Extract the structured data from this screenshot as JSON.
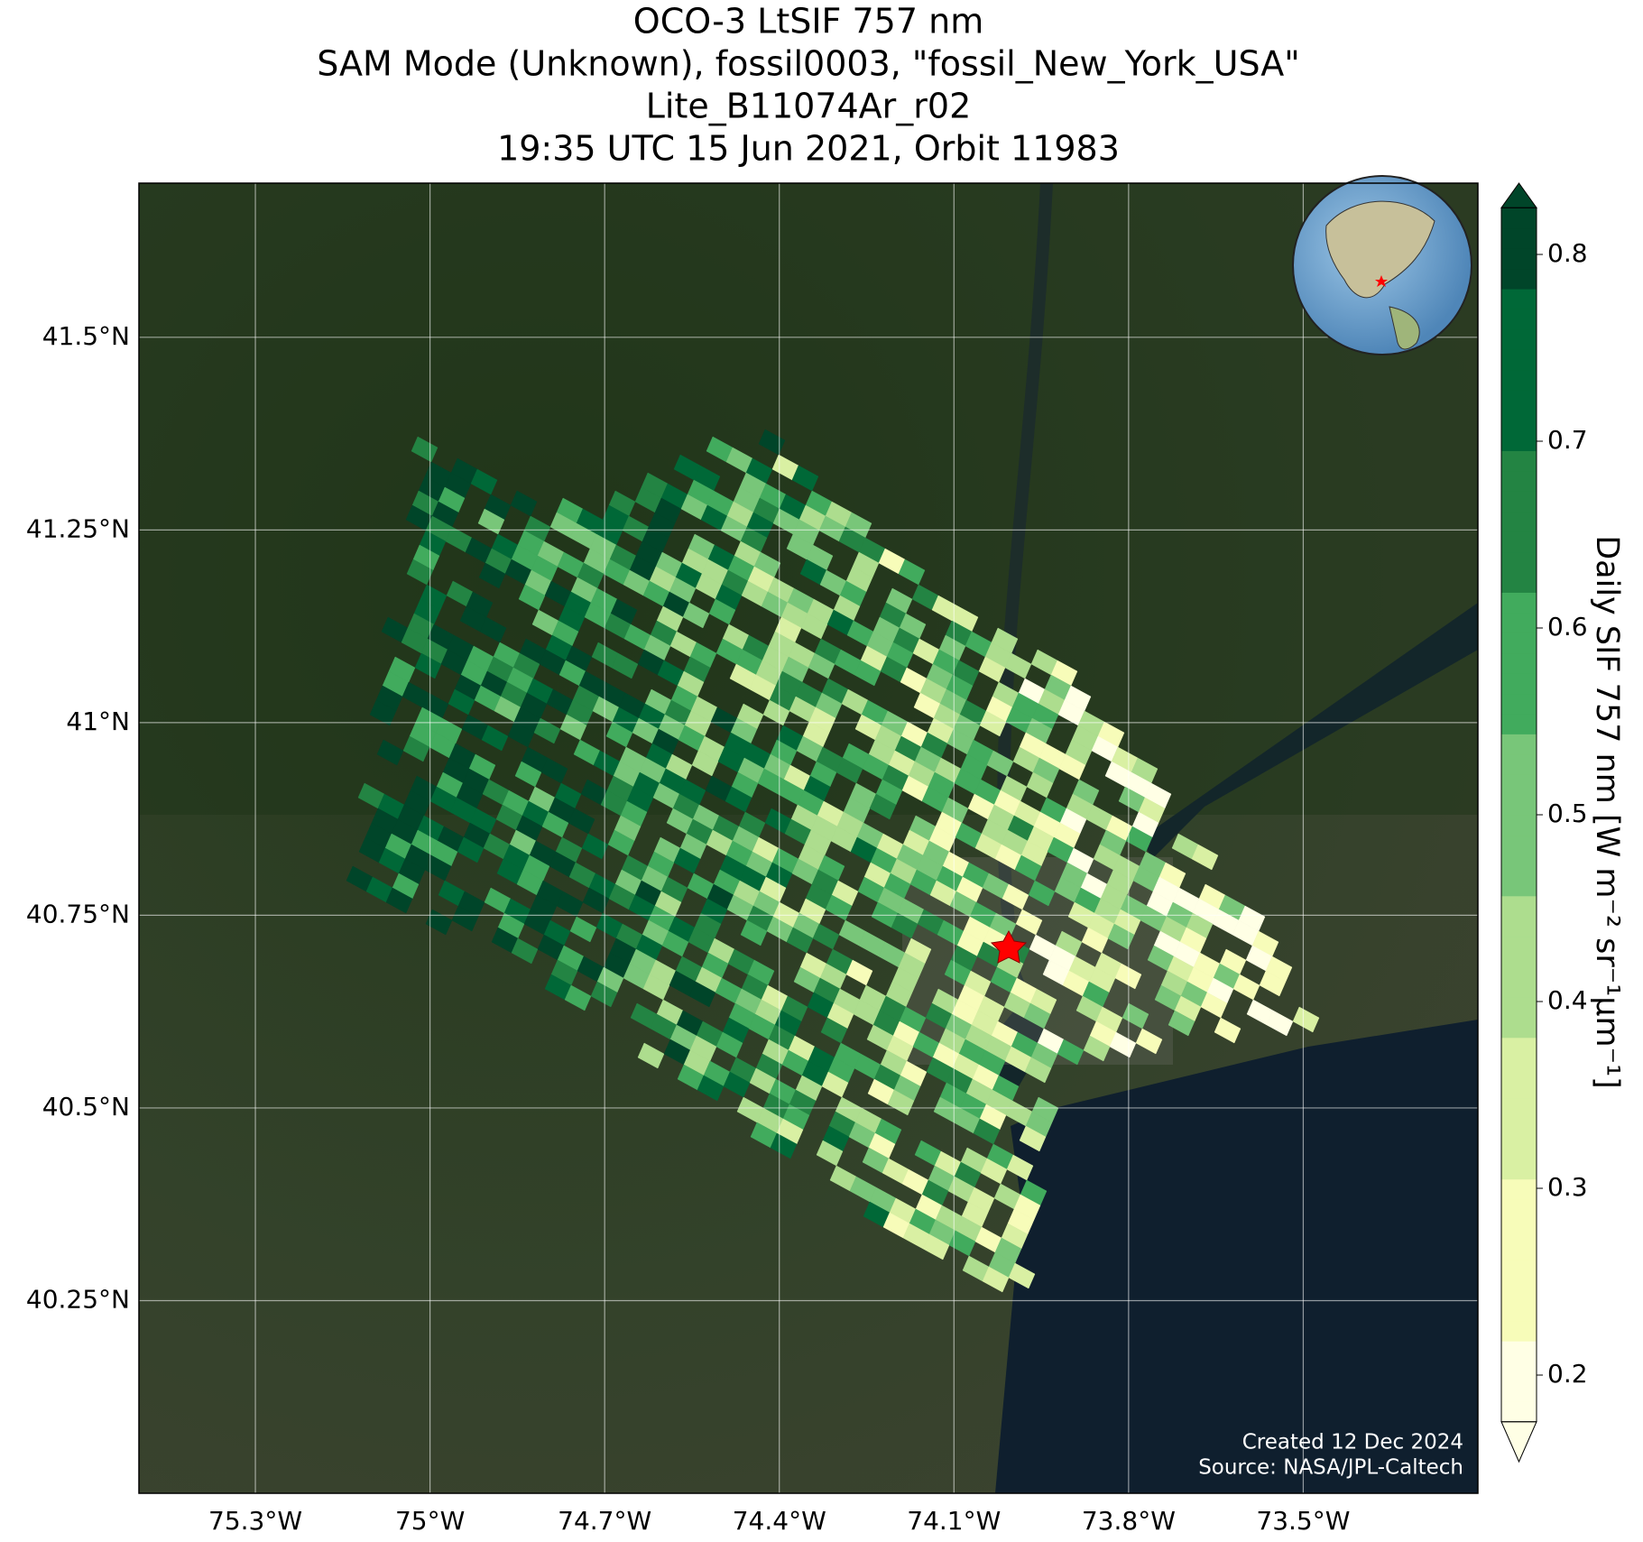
{
  "map": {
    "title": [
      "OCO-3 LtSIF 757 nm",
      "SAM Mode (Unknown), fossil0003, \"fossil_New_York_USA\"",
      "Lite_B11074Ar_r02",
      "19:35 UTC 15 Jun 2021, Orbit 11983"
    ],
    "xlim": [
      -75.5,
      -73.2
    ],
    "ylim": [
      40.0,
      41.7
    ],
    "xticks": [
      {
        "value": -75.3,
        "label": "75.3°W"
      },
      {
        "value": -75.0,
        "label": "75°W"
      },
      {
        "value": -74.7,
        "label": "74.7°W"
      },
      {
        "value": -74.4,
        "label": "74.4°W"
      },
      {
        "value": -74.1,
        "label": "74.1°W"
      },
      {
        "value": -73.8,
        "label": "73.8°W"
      },
      {
        "value": -73.5,
        "label": "73.5°W"
      }
    ],
    "yticks": [
      {
        "value": 40.25,
        "label": "40.25°N"
      },
      {
        "value": 40.5,
        "label": "40.5°N"
      },
      {
        "value": 40.75,
        "label": "40.75°N"
      },
      {
        "value": 41.0,
        "label": "41°N"
      },
      {
        "value": 41.25,
        "label": "41.25°N"
      },
      {
        "value": 41.5,
        "label": "41.5°N"
      }
    ],
    "grid": true,
    "credits": [
      "Created 12 Dec 2024",
      "Source: NASA/JPL-Caltech"
    ]
  },
  "colorbar": {
    "label": "Daily SIF 757 nm [W m⁻² sr⁻¹μm⁻¹]",
    "lim": [
      0.175,
      0.825
    ],
    "ticks": [
      0.2,
      0.3,
      0.4,
      0.5,
      0.6,
      0.7,
      0.8
    ],
    "colors": [
      "#ffffe5",
      "#f7fcb9",
      "#d9f0a3",
      "#addd8e",
      "#78c679",
      "#41ab5d",
      "#238443",
      "#006837",
      "#004529"
    ]
  }
}
